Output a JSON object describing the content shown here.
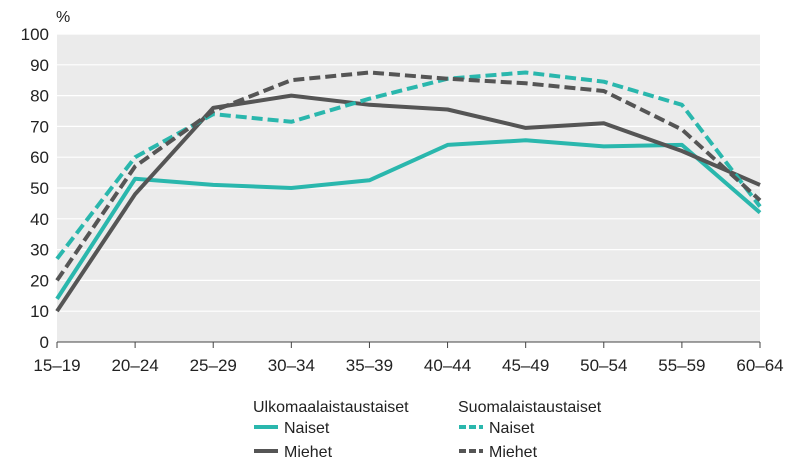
{
  "chart_data": {
    "type": "line",
    "title": "",
    "xlabel": "",
    "ylabel": "%",
    "ylim": [
      0,
      100
    ],
    "yticks": [
      0,
      10,
      20,
      30,
      40,
      50,
      60,
      70,
      80,
      90,
      100
    ],
    "grid": true,
    "legend_position": "bottom",
    "categories": [
      "15–19",
      "20–24",
      "25–29",
      "30–34",
      "35–39",
      "40–44",
      "45–49",
      "50–54",
      "55–59",
      "60–64"
    ],
    "groups": [
      {
        "title": "Ulkomaalaistaustaiset",
        "series": [
          {
            "name": "Naiset",
            "color": "#2ab7ad",
            "dashed": false,
            "values": [
              14,
              53,
              51,
              50,
              52.5,
              64,
              65.5,
              63.5,
              64,
              42
            ]
          },
          {
            "name": "Miehet",
            "color": "#555555",
            "dashed": false,
            "values": [
              10,
              48,
              76,
              80,
              77,
              75.5,
              69.5,
              71,
              62,
              51
            ]
          }
        ]
      },
      {
        "title": "Suomalaistaustaiset",
        "series": [
          {
            "name": "Naiset",
            "color": "#2ab7ad",
            "dashed": true,
            "values": [
              27,
              60,
              74,
              71.5,
              79,
              85.5,
              87.5,
              84.5,
              77,
              44
            ]
          },
          {
            "name": "Miehet",
            "color": "#555555",
            "dashed": true,
            "values": [
              20,
              57,
              75,
              85,
              87.5,
              85.5,
              84,
              81.5,
              69,
              46
            ]
          }
        ]
      }
    ]
  }
}
